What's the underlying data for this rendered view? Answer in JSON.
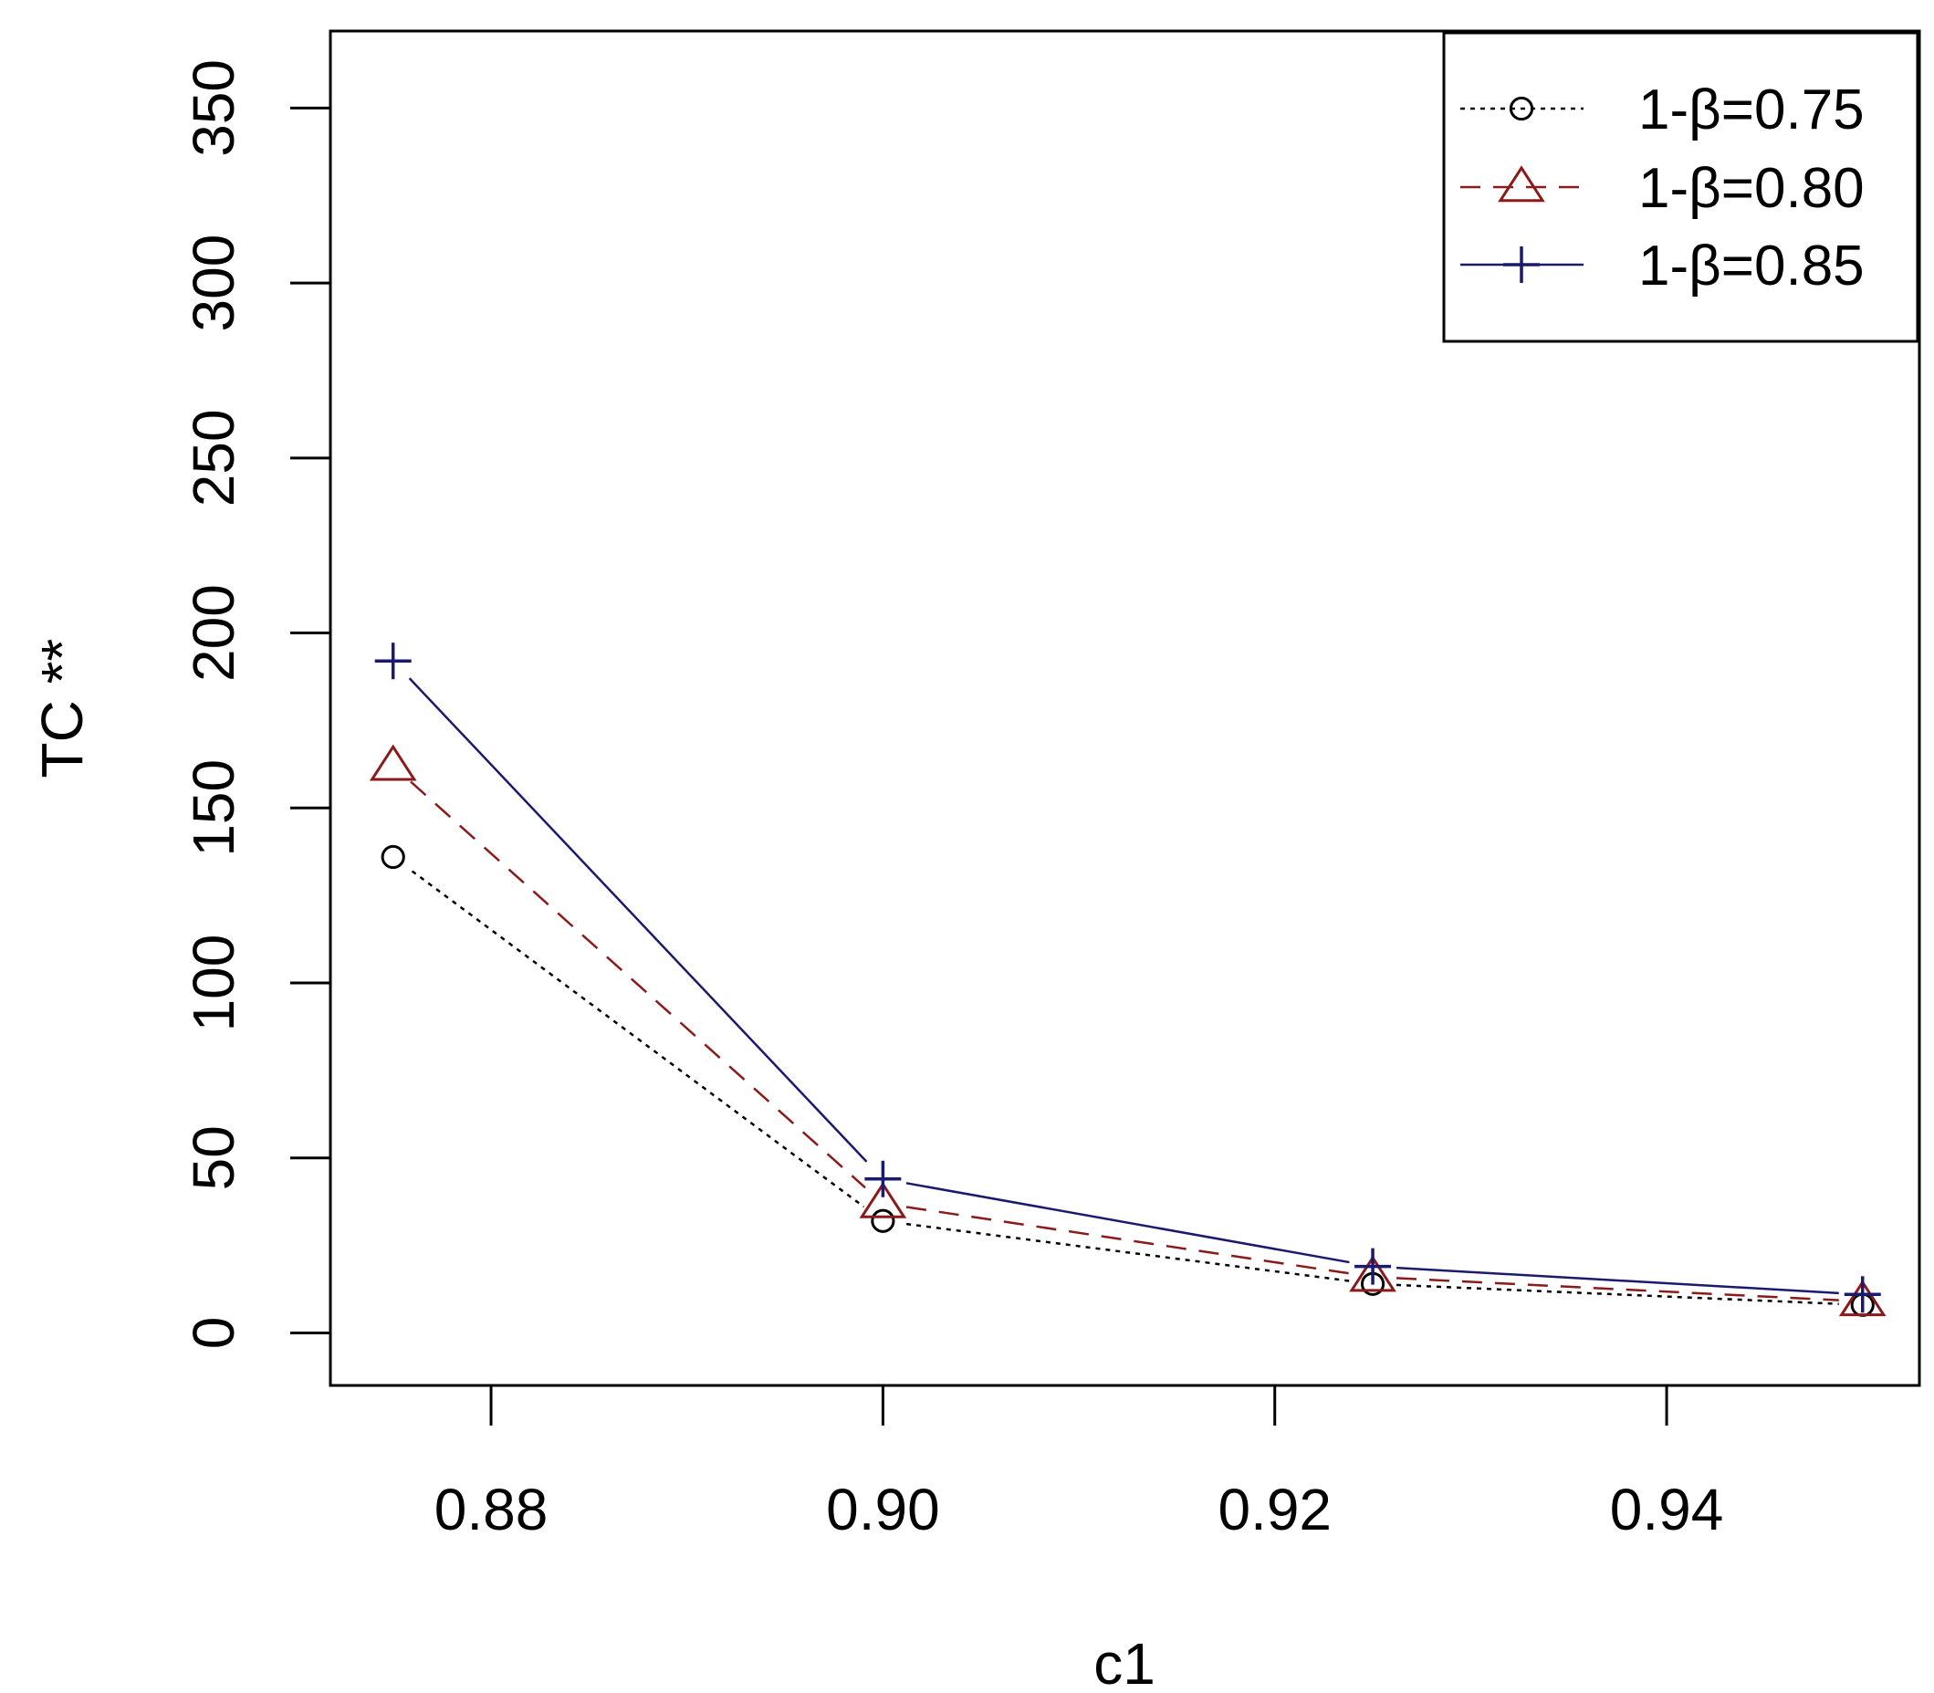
{
  "chart_data": {
    "type": "line",
    "title": "",
    "xlabel": "c1",
    "ylabel": "TC **",
    "xlim": [
      0.8718,
      0.9529
    ],
    "ylim": [
      -15,
      372
    ],
    "xticks": [
      0.88,
      0.9,
      0.92,
      0.94
    ],
    "xtick_labels": [
      "0.88",
      "0.90",
      "0.92",
      "0.94"
    ],
    "yticks": [
      0,
      50,
      100,
      150,
      200,
      250,
      300,
      350
    ],
    "ytick_labels": [
      "0",
      "50",
      "100",
      "150",
      "200",
      "250",
      "300",
      "350"
    ],
    "grid": false,
    "legend_position": "top-right",
    "x": [
      0.875,
      0.9,
      0.925,
      0.95
    ],
    "series": [
      {
        "name": "1-β=0.75",
        "values": [
          136,
          32,
          14,
          8
        ],
        "color": "#000000",
        "line_style": "dotted",
        "marker": "circle"
      },
      {
        "name": "1-β=0.80",
        "values": [
          162,
          37,
          16,
          9
        ],
        "color": "#8b1a1a",
        "line_style": "dashed",
        "marker": "triangle"
      },
      {
        "name": "1-β=0.85",
        "values": [
          192,
          44,
          19,
          11
        ],
        "color": "#1a1a6e",
        "line_style": "solid",
        "marker": "plus"
      }
    ]
  }
}
